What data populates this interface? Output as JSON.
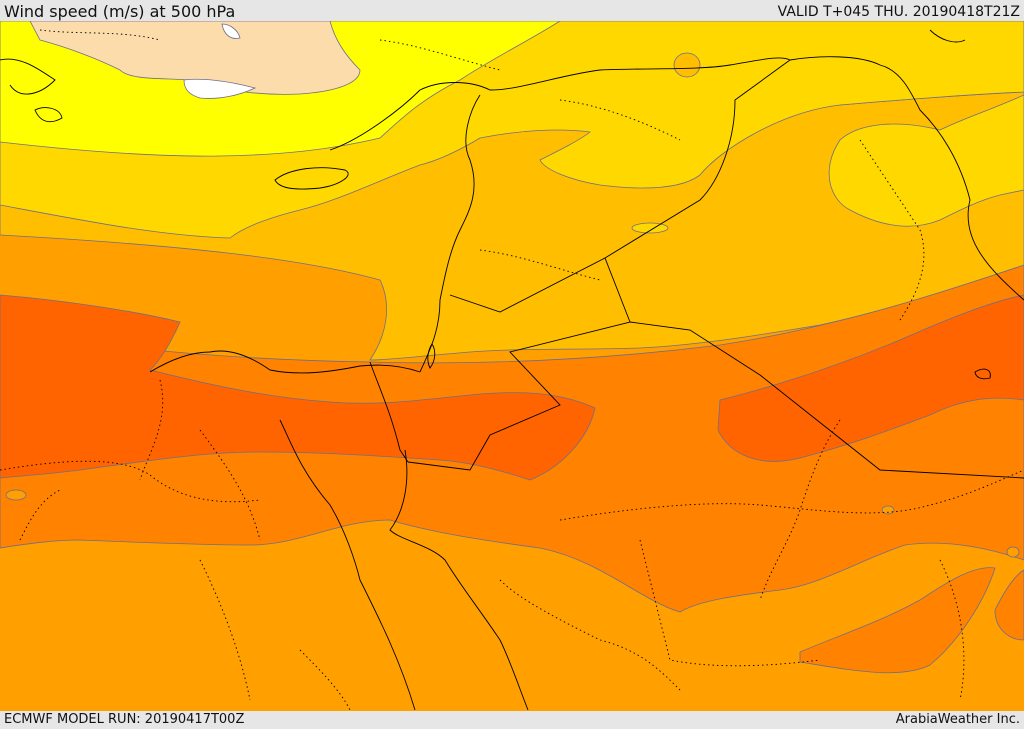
{
  "header": {
    "title": "Wind speed (m/s) at 500 hPa",
    "valid": "VALID T+045 THU. 20190418T21Z"
  },
  "footer": {
    "model_run": "ECMWF MODEL RUN: 20190417T00Z",
    "credit": "ArabiaWeather Inc."
  },
  "colors": {
    "band_lightest": "#fcdcaa",
    "band_yellow": "#ffff00",
    "band_gold": "#ffd800",
    "band_amber": "#ffbe00",
    "band_orange_light": "#ffa000",
    "band_orange": "#ff8200",
    "band_orange_dark": "#ff6400",
    "no_data": "#ffffff",
    "contour_line": "#6e6e8c",
    "border_line": "#000000"
  }
}
